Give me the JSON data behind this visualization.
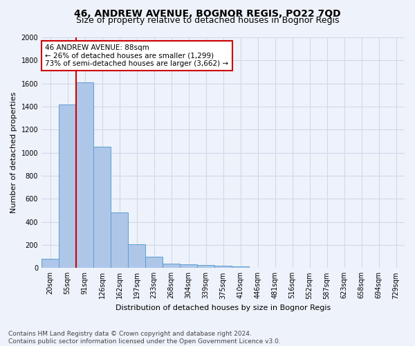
{
  "title": "46, ANDREW AVENUE, BOGNOR REGIS, PO22 7QD",
  "subtitle": "Size of property relative to detached houses in Bognor Regis",
  "xlabel": "Distribution of detached houses by size in Bognor Regis",
  "ylabel": "Number of detached properties",
  "footer_line1": "Contains HM Land Registry data © Crown copyright and database right 2024.",
  "footer_line2": "Contains public sector information licensed under the Open Government Licence v3.0.",
  "bin_labels": [
    "20sqm",
    "55sqm",
    "91sqm",
    "126sqm",
    "162sqm",
    "197sqm",
    "233sqm",
    "268sqm",
    "304sqm",
    "339sqm",
    "375sqm",
    "410sqm",
    "446sqm",
    "481sqm",
    "516sqm",
    "552sqm",
    "587sqm",
    "623sqm",
    "658sqm",
    "694sqm",
    "729sqm"
  ],
  "bar_heights": [
    80,
    1420,
    1610,
    1050,
    480,
    205,
    100,
    40,
    30,
    25,
    20,
    15,
    0,
    0,
    0,
    0,
    0,
    0,
    0,
    0,
    0
  ],
  "bar_color": "#aec6e8",
  "bar_edge_color": "#5a9fd4",
  "grid_color": "#d0d8e8",
  "background_color": "#eef2fa",
  "annotation_line1": "46 ANDREW AVENUE: 88sqm",
  "annotation_line2": "← 26% of detached houses are smaller (1,299)",
  "annotation_line3": "73% of semi-detached houses are larger (3,662) →",
  "marker_bin_index": 2,
  "ylim": [
    0,
    2000
  ],
  "yticks": [
    0,
    200,
    400,
    600,
    800,
    1000,
    1200,
    1400,
    1600,
    1800,
    2000
  ],
  "annotation_box_color": "#ffffff",
  "annotation_box_edge": "#cc0000",
  "marker_line_color": "#cc0000",
  "title_fontsize": 10,
  "subtitle_fontsize": 9,
  "axis_label_fontsize": 8,
  "tick_fontsize": 7,
  "annotation_fontsize": 7.5,
  "footer_fontsize": 6.5
}
